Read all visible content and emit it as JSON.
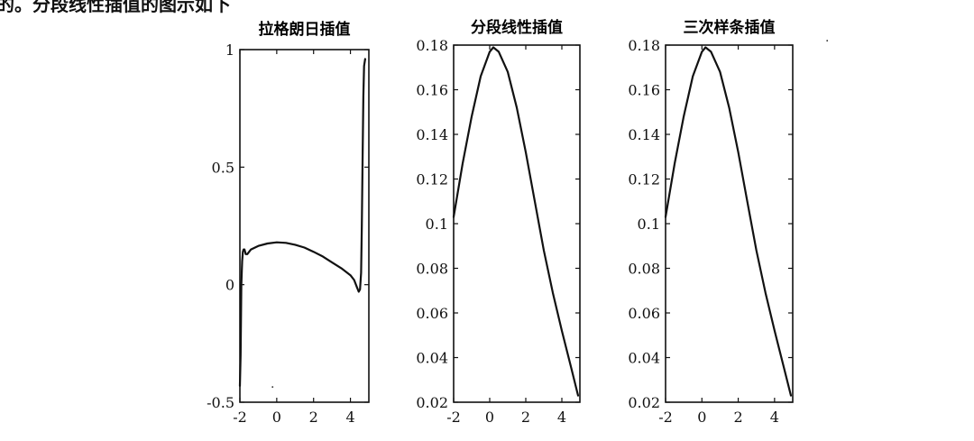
{
  "top_text": "的。分段线性插值的图示如下",
  "chart_data": [
    {
      "type": "line",
      "title": "拉格朗日插值",
      "xlim": [
        -2,
        5
      ],
      "ylim": [
        -0.5,
        1
      ],
      "xticks": [
        -2,
        0,
        2,
        4
      ],
      "xtick_labels": [
        "-2",
        "0",
        "2",
        "4"
      ],
      "yticks": [
        -0.5,
        0,
        0.5,
        1
      ],
      "ytick_labels": [
        "-0.5",
        "0",
        "0.5",
        "1"
      ],
      "grid": false,
      "series": [
        {
          "x": [
            -2,
            -1.96,
            -1.92,
            -1.88,
            -1.84,
            -1.8,
            -1.75,
            -1.68,
            -1.6,
            -1.4,
            -1.0,
            -0.5,
            0,
            0.5,
            1.0,
            1.5,
            2.0,
            2.5,
            3.0,
            3.5,
            4.0,
            4.2,
            4.35,
            4.45,
            4.52,
            4.58,
            4.62,
            4.66,
            4.7,
            4.74,
            4.8
          ],
          "y": [
            -0.43,
            -0.3,
            0.0,
            0.1,
            0.14,
            0.15,
            0.15,
            0.13,
            0.13,
            0.15,
            0.165,
            0.175,
            0.18,
            0.178,
            0.17,
            0.158,
            0.14,
            0.12,
            0.095,
            0.07,
            0.04,
            0.02,
            -0.01,
            -0.03,
            -0.02,
            0.05,
            0.25,
            0.55,
            0.8,
            0.93,
            0.96
          ]
        }
      ]
    },
    {
      "type": "line",
      "title": "分段线性插值",
      "xlim": [
        -2,
        5
      ],
      "ylim": [
        0.02,
        0.18
      ],
      "xticks": [
        -2,
        0,
        2,
        4
      ],
      "xtick_labels": [
        "-2",
        "0",
        "2",
        "4"
      ],
      "yticks": [
        0.02,
        0.04,
        0.06,
        0.08,
        0.1,
        0.12,
        0.14,
        0.16,
        0.18
      ],
      "ytick_labels": [
        "0.02",
        "0.04",
        "0.06",
        "0.08",
        "0.1",
        "0.12",
        "0.14",
        "0.16",
        "0.18"
      ],
      "grid": false,
      "series": [
        {
          "x": [
            -2,
            -1.5,
            -1.0,
            -0.5,
            0,
            0.2,
            0.5,
            1.0,
            1.5,
            2.0,
            2.5,
            3.0,
            3.5,
            4.0,
            4.5,
            4.9
          ],
          "y": [
            0.103,
            0.127,
            0.148,
            0.166,
            0.177,
            0.179,
            0.177,
            0.168,
            0.152,
            0.132,
            0.11,
            0.088,
            0.069,
            0.052,
            0.036,
            0.023
          ]
        }
      ]
    },
    {
      "type": "line",
      "title": "三次样条插值",
      "xlim": [
        -2,
        5
      ],
      "ylim": [
        0.02,
        0.18
      ],
      "xticks": [
        -2,
        0,
        2,
        4
      ],
      "xtick_labels": [
        "-2",
        "0",
        "2",
        "4"
      ],
      "yticks": [
        0.02,
        0.04,
        0.06,
        0.08,
        0.1,
        0.12,
        0.14,
        0.16,
        0.18
      ],
      "ytick_labels": [
        "0.02",
        "0.04",
        "0.06",
        "0.08",
        "0.1",
        "0.12",
        "0.14",
        "0.16",
        "0.18"
      ],
      "grid": false,
      "series": [
        {
          "x": [
            -2,
            -1.5,
            -1.0,
            -0.5,
            0,
            0.2,
            0.5,
            1.0,
            1.5,
            2.0,
            2.5,
            3.0,
            3.5,
            4.0,
            4.5,
            4.9
          ],
          "y": [
            0.103,
            0.127,
            0.148,
            0.166,
            0.177,
            0.179,
            0.177,
            0.168,
            0.152,
            0.132,
            0.11,
            0.088,
            0.069,
            0.052,
            0.036,
            0.023
          ]
        }
      ]
    }
  ]
}
